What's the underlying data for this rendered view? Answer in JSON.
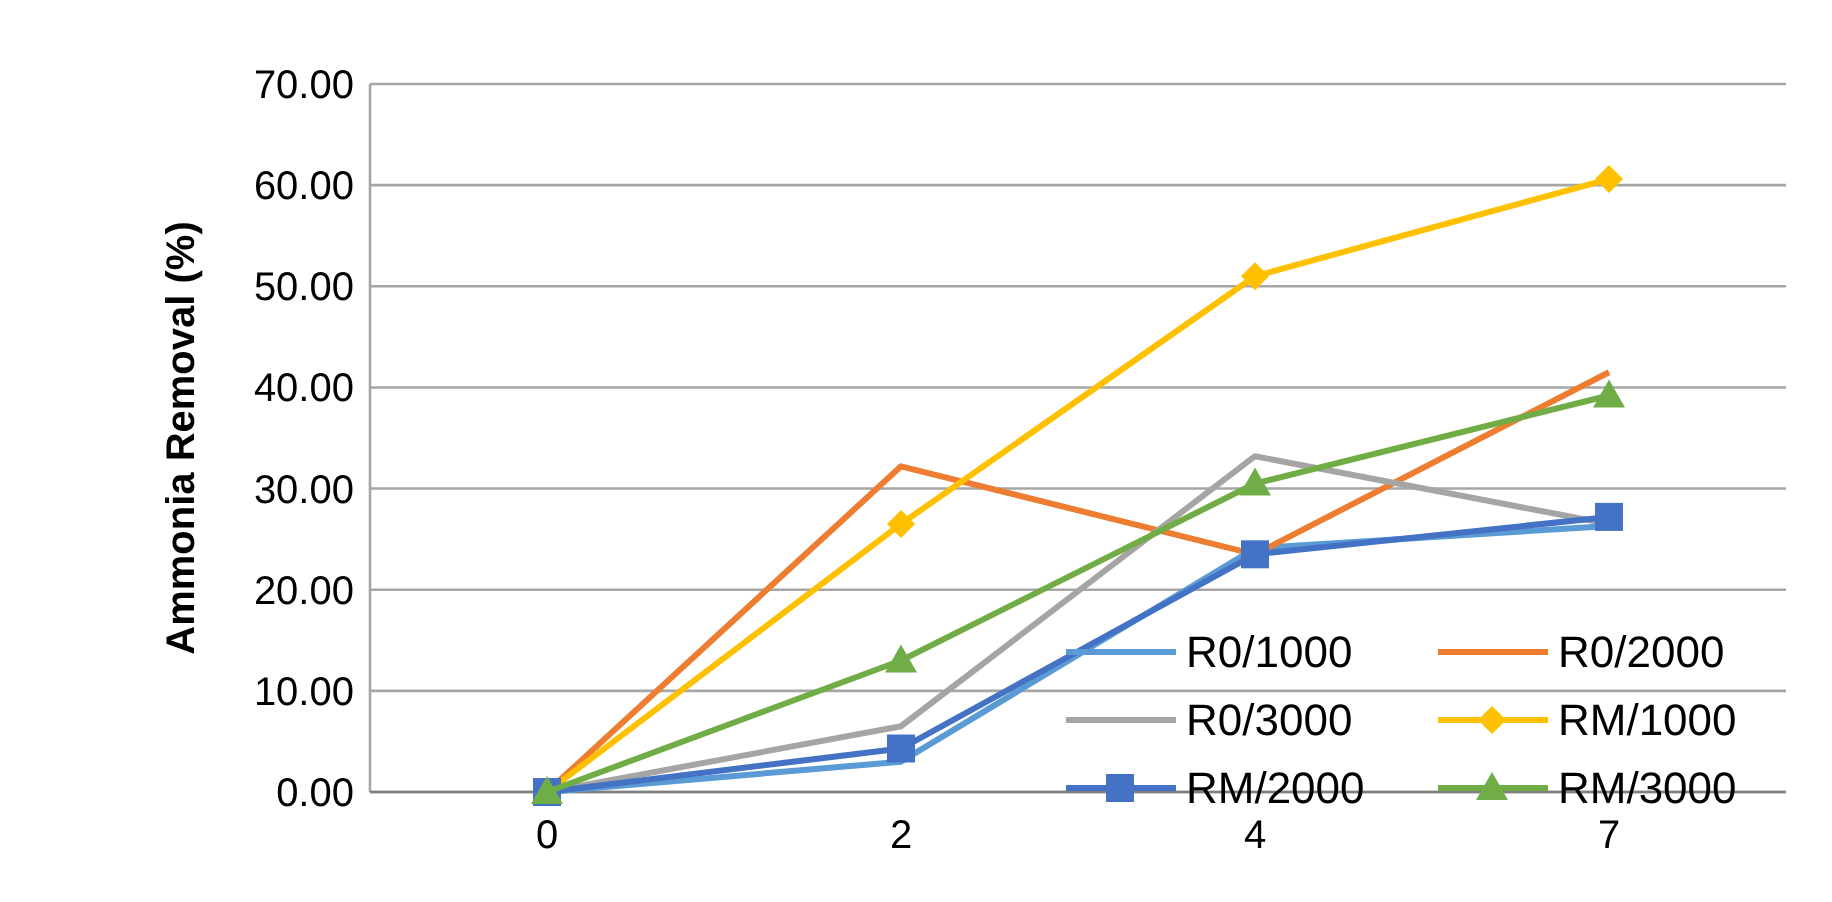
{
  "chart_data": {
    "type": "line",
    "ylabel": "Ammonia Removal (%)",
    "categories": [
      "0",
      "2",
      "4",
      "7"
    ],
    "ylim": [
      0,
      70
    ],
    "yticks": [
      {
        "value": 0,
        "label": "0.00"
      },
      {
        "value": 10,
        "label": "10.00"
      },
      {
        "value": 20,
        "label": "20.00"
      },
      {
        "value": 30,
        "label": "30.00"
      },
      {
        "value": 40,
        "label": "40.00"
      },
      {
        "value": 50,
        "label": "50.00"
      },
      {
        "value": 60,
        "label": "60.00"
      },
      {
        "value": 70,
        "label": "70.00"
      }
    ],
    "grid": "y",
    "legend": "bottom right",
    "series": [
      {
        "name": "R0/1000",
        "color": "#5b9bd5",
        "marker": "none",
        "values": [
          0,
          3.0,
          24.1,
          26.3
        ]
      },
      {
        "name": "R0/2000",
        "color": "#ed7d31",
        "marker": "none",
        "values": [
          0,
          32.2,
          23.5,
          41.5
        ]
      },
      {
        "name": "R0/3000",
        "color": "#a5a5a5",
        "marker": "none",
        "values": [
          0,
          6.5,
          33.2,
          26.5
        ]
      },
      {
        "name": "RM/1000",
        "color": "#ffc000",
        "marker": "diamond",
        "values": [
          0,
          26.5,
          51,
          60.6
        ]
      },
      {
        "name": "RM/2000",
        "color": "#4472c4",
        "marker": "square",
        "values": [
          0,
          4.3,
          23.5,
          27.2
        ]
      },
      {
        "name": "RM/3000",
        "color": "#70ad47",
        "marker": "triangle",
        "values": [
          0,
          13,
          30.5,
          39.2
        ]
      }
    ]
  }
}
